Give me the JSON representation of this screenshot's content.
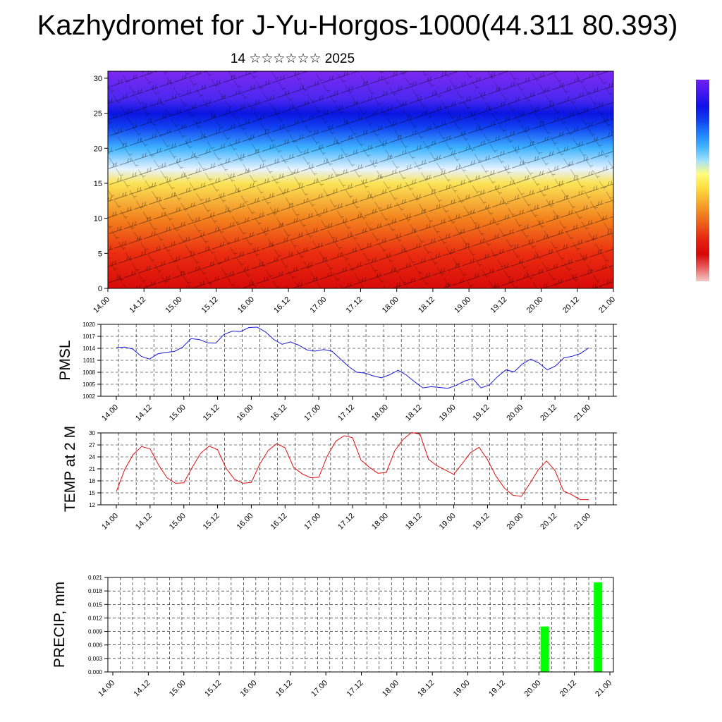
{
  "title": "Kazhydromet for J-Yu-Horgos-1000(44.311 80.393)",
  "subtitle": "14 ☆☆☆☆☆☆ 2025",
  "x_ticks": [
    "14.00",
    "14.12",
    "15.00",
    "15.12",
    "16.00",
    "16.12",
    "17.00",
    "17.12",
    "18.00",
    "18.12",
    "19.00",
    "19.12",
    "20.00",
    "20.12",
    "21.00"
  ],
  "chart_data": [
    {
      "type": "heatmap",
      "title": "",
      "xlabel": "",
      "ylabel": "",
      "ylim": [
        0,
        31
      ],
      "y_ticks": [
        0,
        5,
        10,
        15,
        20,
        25,
        30
      ],
      "x_ticks": [
        "14.00",
        "14.12",
        "15.00",
        "15.12",
        "16.00",
        "16.12",
        "17.00",
        "17.12",
        "18.00",
        "18.12",
        "19.00",
        "19.12",
        "20.00",
        "20.12",
        "21.00"
      ],
      "layers": [
        {
          "y": 0,
          "color": "#d80a0a"
        },
        {
          "y": 5,
          "color": "#ea2d10"
        },
        {
          "y": 10,
          "color": "#f3831e"
        },
        {
          "y": 15,
          "color": "#fbe456"
        },
        {
          "y": 17,
          "color": "#e8f4ff"
        },
        {
          "y": 20,
          "color": "#40b4ff"
        },
        {
          "y": 23,
          "color": "#1040f0"
        },
        {
          "y": 25,
          "color": "#0a14e0"
        },
        {
          "y": 27,
          "color": "#4a28f0"
        },
        {
          "y": 31,
          "color": "#7c28f0"
        }
      ],
      "grid": false,
      "overlay": "wind barbs"
    },
    {
      "type": "line",
      "title": "",
      "xlabel": "",
      "ylabel": "PMSL",
      "ylim": [
        1002,
        1020
      ],
      "y_ticks": [
        1002,
        1005,
        1008,
        1011,
        1014,
        1017,
        1020
      ],
      "x_ticks": [
        "14.00",
        "14.12",
        "15.00",
        "15.12",
        "16.00",
        "16.12",
        "17.00",
        "17.12",
        "18.00",
        "18.12",
        "19.00",
        "19.12",
        "20.00",
        "20.12",
        "21.00"
      ],
      "grid": true,
      "series": [
        {
          "color": "#1a1ad8",
          "values": [
            1014.2,
            1014.3,
            1013.8,
            1012.0,
            1011.3,
            1012.6,
            1013.0,
            1013.2,
            1014.3,
            1016.4,
            1016.2,
            1015.4,
            1015.3,
            1017.5,
            1018.3,
            1018.2,
            1019.2,
            1019.3,
            1018.1,
            1016.2,
            1015.0,
            1015.6,
            1014.8,
            1013.6,
            1013.3,
            1013.7,
            1013.3,
            1011.4,
            1009.5,
            1008.0,
            1007.8,
            1007.1,
            1006.6,
            1007.4,
            1008.5,
            1007.3,
            1005.6,
            1004.1,
            1004.4,
            1004.2,
            1004.0,
            1004.7,
            1005.8,
            1006.4,
            1004.1,
            1004.8,
            1006.9,
            1008.6,
            1008.1,
            1010.1,
            1011.3,
            1010.3,
            1008.6,
            1009.6,
            1011.6,
            1012.0,
            1012.7,
            1014.1
          ]
        }
      ]
    },
    {
      "type": "line",
      "title": "",
      "xlabel": "",
      "ylabel": "TEMP at 2 M",
      "ylim": [
        12,
        30
      ],
      "y_ticks": [
        12,
        15,
        18,
        21,
        24,
        27,
        30
      ],
      "x_ticks": [
        "14.00",
        "14.12",
        "15.00",
        "15.12",
        "16.00",
        "16.12",
        "17.00",
        "17.12",
        "18.00",
        "18.12",
        "19.00",
        "19.12",
        "20.00",
        "20.12",
        "21.00"
      ],
      "grid": true,
      "series": [
        {
          "color": "#e01010",
          "values": [
            15.3,
            20.9,
            24.6,
            26.6,
            26.0,
            22.0,
            18.8,
            17.4,
            17.5,
            21.4,
            24.9,
            26.7,
            25.8,
            21.2,
            18.4,
            17.4,
            17.6,
            22.2,
            25.6,
            27.3,
            26.3,
            21.4,
            19.8,
            18.8,
            18.9,
            24.2,
            27.9,
            29.3,
            28.8,
            23.2,
            21.4,
            19.9,
            20.1,
            25.5,
            28.4,
            30.1,
            29.7,
            23.4,
            21.8,
            20.7,
            19.6,
            22.3,
            25.1,
            26.4,
            23.3,
            19.2,
            16.2,
            14.4,
            14.1,
            17.3,
            20.7,
            23.0,
            20.6,
            15.5,
            14.5,
            13.3,
            13.3
          ]
        }
      ]
    },
    {
      "type": "bar",
      "title": "",
      "xlabel": "",
      "ylabel": "PRECIP, mm",
      "ylim": [
        0,
        0.021
      ],
      "y_ticks": [
        "0.000",
        "0.003",
        "0.006",
        "0.009",
        "0.012",
        "0.015",
        "0.018",
        "0.021"
      ],
      "x_ticks": [
        "14.00",
        "14.12",
        "15.00",
        "15.12",
        "16.00",
        "16.12",
        "17.00",
        "17.12",
        "18.00",
        "18.12",
        "19.00",
        "19.12",
        "20.00",
        "20.12",
        "21.00"
      ],
      "grid": true,
      "bars": [
        {
          "x": 20.083,
          "value": 0.0101,
          "color": "#00ff00"
        },
        {
          "x": 20.833,
          "value": 0.0199,
          "color": "#00ff00"
        }
      ]
    }
  ],
  "colorbar": {
    "colors": [
      "#7020f0",
      "#4018f0",
      "#1010e8",
      "#1040f0",
      "#2080ff",
      "#40b4ff",
      "#a0e0ff",
      "#fffc80",
      "#ffe040",
      "#f8b030",
      "#f08020",
      "#ec5018",
      "#e42010",
      "#d80808",
      "#e86060",
      "#f4c8c8"
    ]
  }
}
